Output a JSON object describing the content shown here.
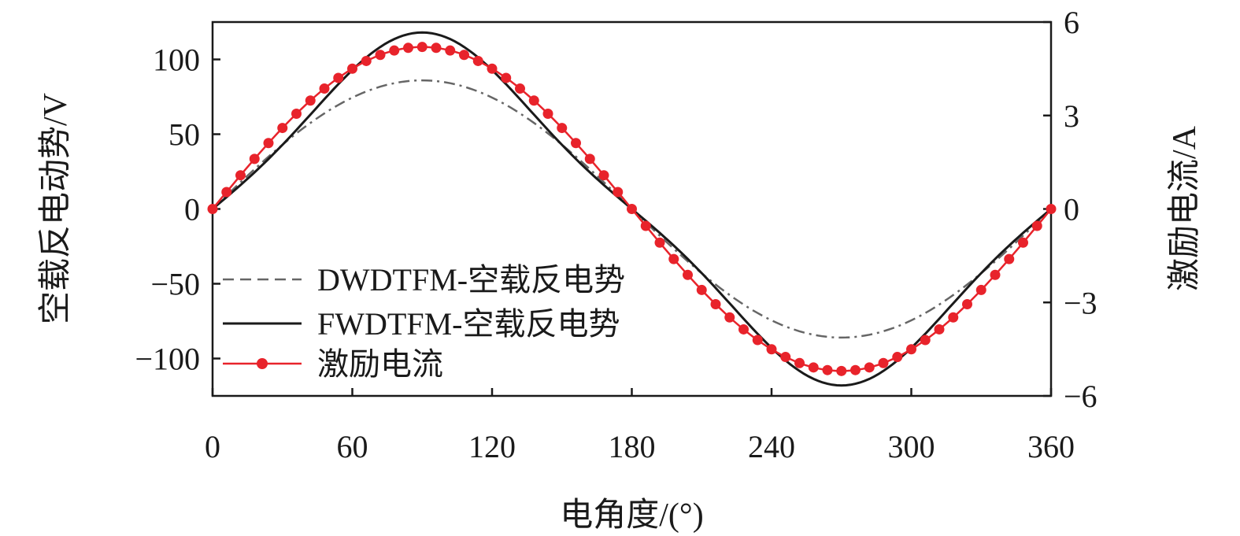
{
  "chart_data": {
    "type": "line",
    "xlabel": "电角度/(°)",
    "ylabel": "空载反电动势/V",
    "y2label": "激励电流/A",
    "xlim": [
      0,
      360
    ],
    "ylim": [
      -125,
      125
    ],
    "y2lim": [
      -6,
      6
    ],
    "xticks": [
      0,
      60,
      120,
      180,
      240,
      300,
      360
    ],
    "xtick_labels": [
      "0",
      "60",
      "120",
      "180",
      "240",
      "300",
      "360"
    ],
    "yticks": [
      -100,
      -50,
      0,
      50,
      100
    ],
    "ytick_labels": [
      "−100",
      "−50",
      "0",
      "50",
      "100"
    ],
    "y2ticks": [
      -6,
      -3,
      0,
      3,
      6
    ],
    "y2tick_labels": [
      "−6",
      "−3",
      "0",
      "3",
      "6"
    ],
    "legend_position": "bottom-left",
    "series": [
      {
        "name": "DWDTFM-空载反电势",
        "axis": "left",
        "style": "dash-dot",
        "color": "#666666",
        "amplitude": 86,
        "x": [
          0,
          30,
          60,
          90,
          120,
          150,
          180,
          210,
          240,
          270,
          300,
          330,
          360
        ],
        "values": [
          -3,
          39,
          72,
          86,
          76,
          43,
          0,
          -43,
          -74,
          -86,
          -72,
          -39,
          -3
        ]
      },
      {
        "name": "FWDTFM-空载反电势",
        "axis": "left",
        "style": "solid",
        "color": "#1a1a1a",
        "amplitude": 118,
        "x": [
          0,
          30,
          60,
          90,
          120,
          150,
          180,
          210,
          240,
          270,
          300,
          330,
          360
        ],
        "values": [
          -3,
          32,
          84,
          118,
          98,
          44,
          0,
          -44,
          -96,
          -118,
          -98,
          -42,
          -3
        ]
      },
      {
        "name": "激励电流",
        "axis": "right",
        "style": "line-marker",
        "color": "#e8232b",
        "amplitude": 5.2,
        "x": [
          0,
          30,
          60,
          90,
          120,
          150,
          180,
          210,
          240,
          270,
          300,
          330,
          360
        ],
        "values": [
          0,
          2.6,
          4.5,
          5.2,
          4.5,
          2.6,
          0,
          -2.6,
          -4.5,
          -5.2,
          -4.5,
          -2.6,
          0
        ]
      }
    ]
  }
}
